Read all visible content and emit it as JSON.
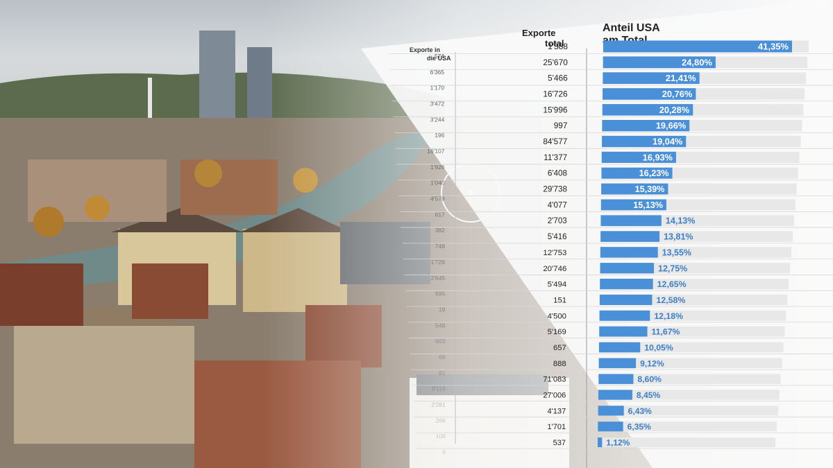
{
  "chart_data": {
    "type": "bar",
    "orientation": "horizontal",
    "headers": {
      "exports_usa": "Exporte in die USA",
      "exports_total": "Exporte total",
      "share_line1": "Anteil USA",
      "share_line2": "am Total"
    },
    "rows": [
      {
        "usa": "574",
        "total": "1'388",
        "share": 41.35,
        "label": "41,35%"
      },
      {
        "usa": "6'365",
        "total": "25'670",
        "share": 24.8,
        "label": "24,80%"
      },
      {
        "usa": "1'170",
        "total": "5'466",
        "share": 21.41,
        "label": "21,41%"
      },
      {
        "usa": "3'472",
        "total": "16'726",
        "share": 20.76,
        "label": "20,76%"
      },
      {
        "usa": "3'244",
        "total": "15'996",
        "share": 20.28,
        "label": "20,28%"
      },
      {
        "usa": "196",
        "total": "997",
        "share": 19.66,
        "label": "19,66%"
      },
      {
        "usa": "16'107",
        "total": "84'577",
        "share": 19.04,
        "label": "19,04%"
      },
      {
        "usa": "1'926",
        "total": "11'377",
        "share": 16.93,
        "label": "16,93%"
      },
      {
        "usa": "1'040",
        "total": "6'408",
        "share": 16.23,
        "label": "16,23%"
      },
      {
        "usa": "4'578",
        "total": "29'738",
        "share": 15.39,
        "label": "15,39%"
      },
      {
        "usa": "617",
        "total": "4'077",
        "share": 15.13,
        "label": "15,13%"
      },
      {
        "usa": "382",
        "total": "2'703",
        "share": 14.13,
        "label": "14,13%"
      },
      {
        "usa": "748",
        "total": "5'416",
        "share": 13.81,
        "label": "13,81%"
      },
      {
        "usa": "1'729",
        "total": "12'753",
        "share": 13.55,
        "label": "13,55%"
      },
      {
        "usa": "2'645",
        "total": "20'746",
        "share": 12.75,
        "label": "12,75%"
      },
      {
        "usa": "695",
        "total": "5'494",
        "share": 12.65,
        "label": "12,65%"
      },
      {
        "usa": "19",
        "total": "151",
        "share": 12.58,
        "label": "12,58%"
      },
      {
        "usa": "548",
        "total": "4'500",
        "share": 12.18,
        "label": "12,18%"
      },
      {
        "usa": "603",
        "total": "5'169",
        "share": 11.67,
        "label": "11,67%"
      },
      {
        "usa": "66",
        "total": "657",
        "share": 10.05,
        "label": "10,05%"
      },
      {
        "usa": "81",
        "total": "888",
        "share": 9.12,
        "label": "9,12%"
      },
      {
        "usa": "6'116",
        "total": "71'083",
        "share": 8.6,
        "label": "8,60%"
      },
      {
        "usa": "2'281",
        "total": "27'006",
        "share": 8.45,
        "label": "8,45%"
      },
      {
        "usa": "266",
        "total": "4'137",
        "share": 6.43,
        "label": "6,43%"
      },
      {
        "usa": "108",
        "total": "1'701",
        "share": 6.35,
        "label": "6,35%"
      },
      {
        "usa": "6",
        "total": "537",
        "share": 1.12,
        "label": "1,12%"
      }
    ],
    "xlim": [
      0,
      45
    ],
    "grid": false,
    "colors": {
      "bar": "#4a90d8",
      "bar_label_inside": "#ffffff",
      "bar_label_outside": "#3d7fc6",
      "track": "#e8e8e8",
      "sheet": "#fafafa"
    }
  },
  "background": {
    "description_free": true,
    "sky": "#c9ced2",
    "hills": "#5c6b4e",
    "roofs": "#8a4b35",
    "river": "#6f8a88"
  }
}
